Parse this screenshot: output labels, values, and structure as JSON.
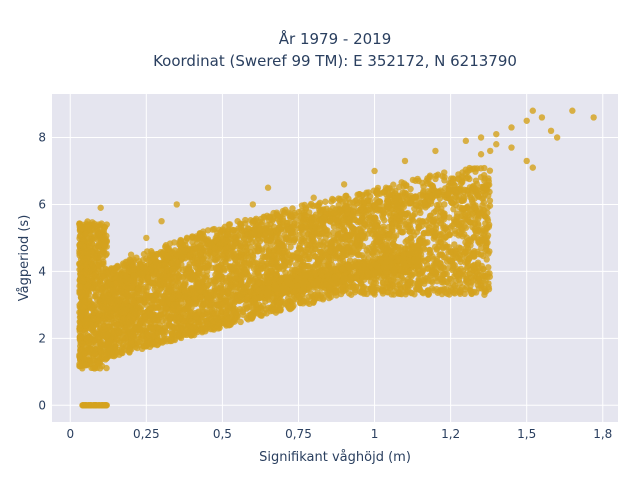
{
  "chart_data": {
    "type": "scatter",
    "title_line1": "År 1979 - 2019",
    "title_line2": "Koordinat (Sweref 99 TM): E 352172, N 6213790",
    "xlabel": "Signifikant våghöjd (m)",
    "ylabel": "Vågperiod (s)",
    "xlim": [
      -0.06,
      1.8
    ],
    "ylim": [
      -0.5,
      9.3
    ],
    "x_ticks": [
      0,
      0.25,
      0.5,
      0.75,
      1,
      1.25,
      1.5,
      1.75
    ],
    "x_tick_labels": [
      "0",
      "0,25",
      "0,5",
      "0,75",
      "1",
      "1,2",
      "1,5",
      "1,8"
    ],
    "y_ticks": [
      0,
      2,
      4,
      6,
      8
    ],
    "y_tick_labels": [
      "0",
      "2",
      "4",
      "6",
      "8"
    ],
    "grid": true,
    "legend": "none",
    "marker_color": "#D4A21E",
    "plot_background": "#E5E5EF",
    "series": [
      {
        "point_count_approx": "very dense (tens of thousands)",
        "points": [
          [
            0.04,
            0.0
          ],
          [
            0.06,
            0.0
          ],
          [
            0.08,
            0.0
          ],
          [
            0.1,
            0.0
          ],
          [
            0.12,
            0.0
          ],
          [
            0.03,
            1.5
          ],
          [
            0.05,
            1.2
          ],
          [
            0.08,
            1.1
          ],
          [
            0.1,
            1.4
          ],
          [
            0.15,
            1.6
          ],
          [
            0.2,
            1.9
          ],
          [
            0.05,
            2.5
          ],
          [
            0.08,
            3.0
          ],
          [
            0.1,
            3.5
          ],
          [
            0.12,
            4.0
          ],
          [
            0.1,
            4.5
          ],
          [
            0.08,
            5.0
          ],
          [
            0.12,
            5.4
          ],
          [
            0.1,
            5.9
          ],
          [
            0.2,
            2.5
          ],
          [
            0.2,
            3.5
          ],
          [
            0.2,
            4.5
          ],
          [
            0.25,
            5.0
          ],
          [
            0.3,
            5.5
          ],
          [
            0.35,
            6.0
          ],
          [
            0.3,
            2.2
          ],
          [
            0.35,
            3.0
          ],
          [
            0.4,
            3.5
          ],
          [
            0.45,
            4.0
          ],
          [
            0.5,
            4.5
          ],
          [
            0.55,
            5.5
          ],
          [
            0.6,
            6.0
          ],
          [
            0.65,
            6.5
          ],
          [
            0.45,
            2.8
          ],
          [
            0.55,
            3.2
          ],
          [
            0.65,
            3.5
          ],
          [
            0.75,
            4.0
          ],
          [
            0.85,
            4.3
          ],
          [
            0.95,
            4.5
          ],
          [
            1.05,
            4.8
          ],
          [
            0.7,
            5.5
          ],
          [
            0.8,
            6.2
          ],
          [
            0.9,
            6.6
          ],
          [
            1.0,
            7.0
          ],
          [
            1.1,
            7.3
          ],
          [
            1.2,
            7.6
          ],
          [
            1.3,
            7.9
          ],
          [
            1.35,
            8.0
          ],
          [
            1.25,
            4.6
          ],
          [
            1.3,
            4.7
          ],
          [
            1.35,
            4.5
          ],
          [
            1.4,
            8.1
          ],
          [
            1.45,
            8.3
          ],
          [
            1.5,
            8.5
          ],
          [
            1.52,
            8.8
          ],
          [
            1.55,
            8.6
          ],
          [
            1.58,
            8.2
          ],
          [
            1.6,
            8.0
          ],
          [
            1.65,
            8.8
          ],
          [
            1.72,
            8.6
          ],
          [
            1.5,
            7.3
          ],
          [
            1.52,
            7.1
          ],
          [
            1.45,
            7.7
          ],
          [
            1.4,
            7.8
          ],
          [
            1.38,
            7.6
          ],
          [
            1.35,
            7.5
          ]
        ]
      }
    ]
  }
}
